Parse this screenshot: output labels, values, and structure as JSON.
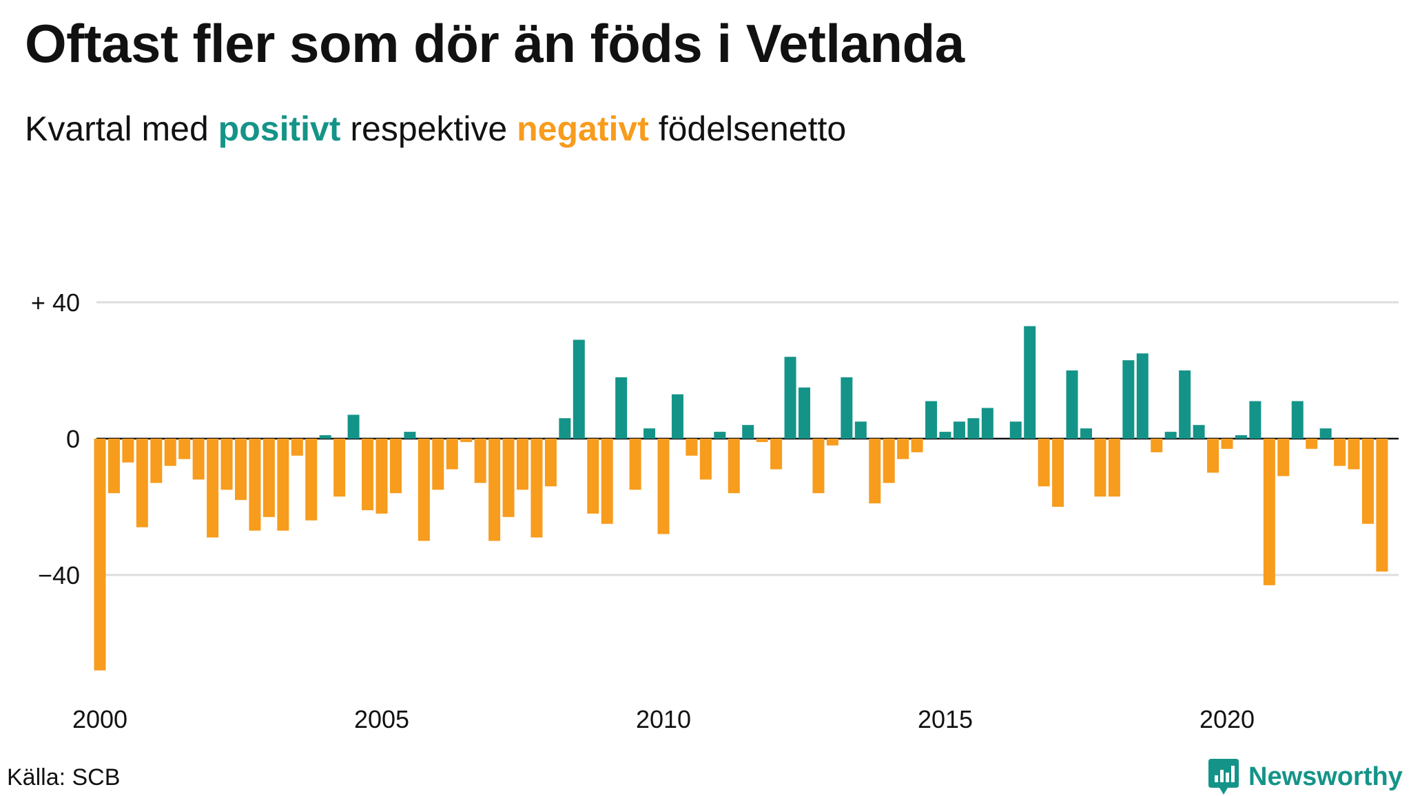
{
  "title": "Oftast fler som dör än föds i Vetlanda",
  "subtitle": {
    "prefix": "Kvartal med ",
    "positive_word": "positivt",
    "middle": " respektive ",
    "negative_word": "negativt",
    "suffix": " födelsenetto"
  },
  "source": "Källa: SCB",
  "brand": {
    "name": "Newsworthy",
    "icon": "newsworthy-logo-icon"
  },
  "colors": {
    "positive": "#149488",
    "negative": "#F79C1D",
    "grid": "#dddddd",
    "text": "#111111"
  },
  "chart_data": {
    "type": "bar",
    "x_unit": "quarter",
    "x_start": "2000 Q1",
    "x_end": "2023 Q1",
    "ylim": [
      -70,
      45
    ],
    "y_ticks": [
      {
        "value": 40,
        "label": "+ 40"
      },
      {
        "value": 0,
        "label": "0"
      },
      {
        "value": -40,
        "label": "−40"
      }
    ],
    "x_ticks": [
      "2000",
      "2005",
      "2010",
      "2015",
      "2020"
    ],
    "grid": true,
    "values": [
      -68,
      -16,
      -7,
      -26,
      -13,
      -8,
      -6,
      -12,
      -29,
      -15,
      -18,
      -27,
      -23,
      -27,
      -5,
      -24,
      1,
      -17,
      7,
      -21,
      -22,
      -16,
      2,
      -30,
      -15,
      -9,
      -1,
      -13,
      -30,
      -23,
      -15,
      -29,
      -14,
      6,
      29,
      -22,
      -25,
      18,
      -15,
      3,
      -28,
      13,
      -5,
      -12,
      2,
      -16,
      4,
      -1,
      -9,
      24,
      15,
      -16,
      -2,
      18,
      5,
      -19,
      -13,
      -6,
      -4,
      11,
      2,
      5,
      6,
      9,
      0,
      5,
      33,
      -14,
      -20,
      20,
      3,
      -17,
      -17,
      23,
      25,
      -4,
      2,
      20,
      4,
      -10,
      -3,
      1,
      11,
      -43,
      -11,
      11,
      -3,
      3,
      -8,
      -9,
      -25,
      -39,
      0
    ]
  }
}
